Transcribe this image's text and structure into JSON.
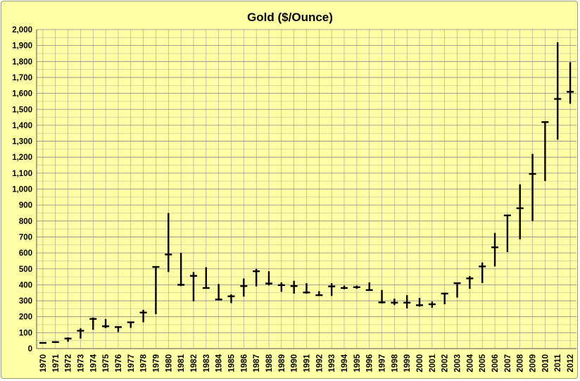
{
  "chart_data": {
    "type": "hlc",
    "title": "Gold ($/Ounce)",
    "xlabel": "",
    "ylabel": "",
    "ylim": [
      0,
      2000
    ],
    "y_tick_step": 100,
    "y_minor_step": 50,
    "y_tick_labels": [
      "0",
      "100",
      "200",
      "300",
      "400",
      "500",
      "600",
      "700",
      "800",
      "900",
      "1,000",
      "1,100",
      "1,200",
      "1,300",
      "1,400",
      "1,500",
      "1,600",
      "1,700",
      "1,800",
      "1,900",
      "2,000"
    ],
    "grid": true,
    "legend": "none",
    "colors": {
      "background": "#fefea6",
      "grid": "#8a8a8a",
      "bars": "#000000"
    },
    "categories": [
      "1970",
      "1971",
      "1972",
      "1973",
      "1974",
      "1975",
      "1976",
      "1977",
      "1978",
      "1979",
      "1980",
      "1981",
      "1982",
      "1983",
      "1984",
      "1985",
      "1986",
      "1987",
      "1988",
      "1989",
      "1990",
      "1991",
      "1992",
      "1993",
      "1994",
      "1995",
      "1996",
      "1997",
      "1998",
      "1999",
      "2000",
      "2001",
      "2002",
      "2003",
      "2004",
      "2005",
      "2006",
      "2007",
      "2008",
      "2009",
      "2010",
      "2011",
      "2012"
    ],
    "series": [
      {
        "high": [
          37,
          43,
          70,
          127,
          195,
          185,
          140,
          167,
          243,
          512,
          850,
          600,
          480,
          510,
          405,
          340,
          440,
          500,
          485,
          415,
          425,
          410,
          360,
          410,
          395,
          395,
          415,
          368,
          313,
          335,
          318,
          295,
          350,
          415,
          455,
          540,
          725,
          840,
          1030,
          1220,
          1425,
          1920,
          1795
        ],
        "low": [
          35,
          36,
          43,
          63,
          118,
          128,
          104,
          130,
          165,
          216,
          480,
          392,
          297,
          375,
          303,
          285,
          326,
          390,
          396,
          356,
          345,
          344,
          330,
          330,
          372,
          375,
          367,
          283,
          273,
          252,
          263,
          256,
          278,
          320,
          375,
          411,
          515,
          605,
          685,
          800,
          1050,
          1310,
          1535
        ],
        "close": [
          36,
          41,
          63,
          112,
          186,
          140,
          135,
          165,
          226,
          512,
          590,
          400,
          456,
          380,
          308,
          328,
          392,
          485,
          408,
          398,
          392,
          352,
          335,
          390,
          380,
          385,
          367,
          290,
          288,
          288,
          272,
          278,
          345,
          410,
          440,
          515,
          635,
          835,
          880,
          1095,
          1420,
          1565,
          1610
        ]
      }
    ]
  }
}
